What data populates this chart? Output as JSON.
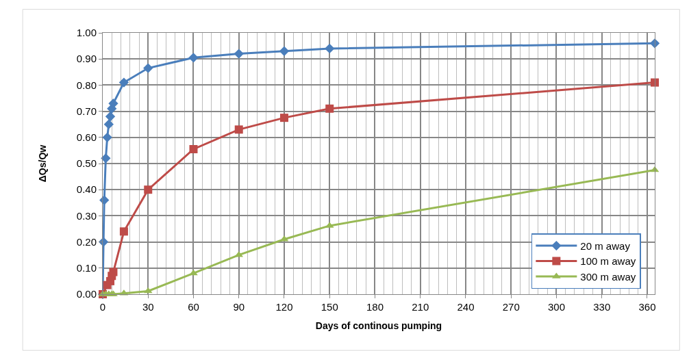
{
  "chart_data": {
    "type": "line",
    "xlabel": "Days of continous pumping",
    "ylabel": "ΔQs/Qw",
    "xlim": [
      0,
      365
    ],
    "xticks": [
      0,
      30,
      60,
      90,
      120,
      150,
      180,
      210,
      240,
      270,
      300,
      330,
      360
    ],
    "ylim": [
      0,
      1
    ],
    "yticks": [
      {
        "value": 0,
        "label": "0.00"
      },
      {
        "value": 0.1,
        "label": "0.10"
      },
      {
        "value": 0.2,
        "label": "0.20"
      },
      {
        "value": 0.3,
        "label": "0.30"
      },
      {
        "value": 0.4,
        "label": "0.40"
      },
      {
        "value": 0.5,
        "label": "0.50"
      },
      {
        "value": 0.6,
        "label": "0.60"
      },
      {
        "value": 0.7,
        "label": "0.70"
      },
      {
        "value": 0.8,
        "label": "0.80"
      },
      {
        "value": 0.9,
        "label": "0.90"
      },
      {
        "value": 1,
        "label": "1.00"
      }
    ],
    "grid": true,
    "legend": "bottom right",
    "line_style": "solid",
    "series": [
      {
        "name": "20 m away",
        "color": "#4a7ebb",
        "marker": "diamond",
        "x": [
          0,
          0.5,
          1,
          2,
          3,
          4,
          5,
          6,
          7,
          14,
          30,
          60,
          90,
          120,
          150,
          365
        ],
        "values": [
          0,
          0.2,
          0.36,
          0.52,
          0.6,
          0.65,
          0.68,
          0.71,
          0.73,
          0.81,
          0.865,
          0.905,
          0.92,
          0.93,
          0.94,
          0.96
        ]
      },
      {
        "name": "100 m away",
        "color": "#be4b48",
        "marker": "square",
        "x": [
          0,
          3,
          5,
          6,
          7,
          14,
          30,
          60,
          90,
          120,
          150,
          365
        ],
        "values": [
          0,
          0.035,
          0.05,
          0.07,
          0.085,
          0.24,
          0.4,
          0.555,
          0.63,
          0.675,
          0.71,
          0.81
        ]
      },
      {
        "name": "300 m away",
        "color": "#98b954",
        "marker": "triangle",
        "x": [
          0,
          2,
          4,
          6,
          7,
          14,
          30,
          60,
          90,
          120,
          150,
          365
        ],
        "values": [
          0,
          0,
          0,
          0,
          0,
          0.003,
          0.012,
          0.08,
          0.15,
          0.21,
          0.262,
          0.475
        ]
      }
    ]
  }
}
